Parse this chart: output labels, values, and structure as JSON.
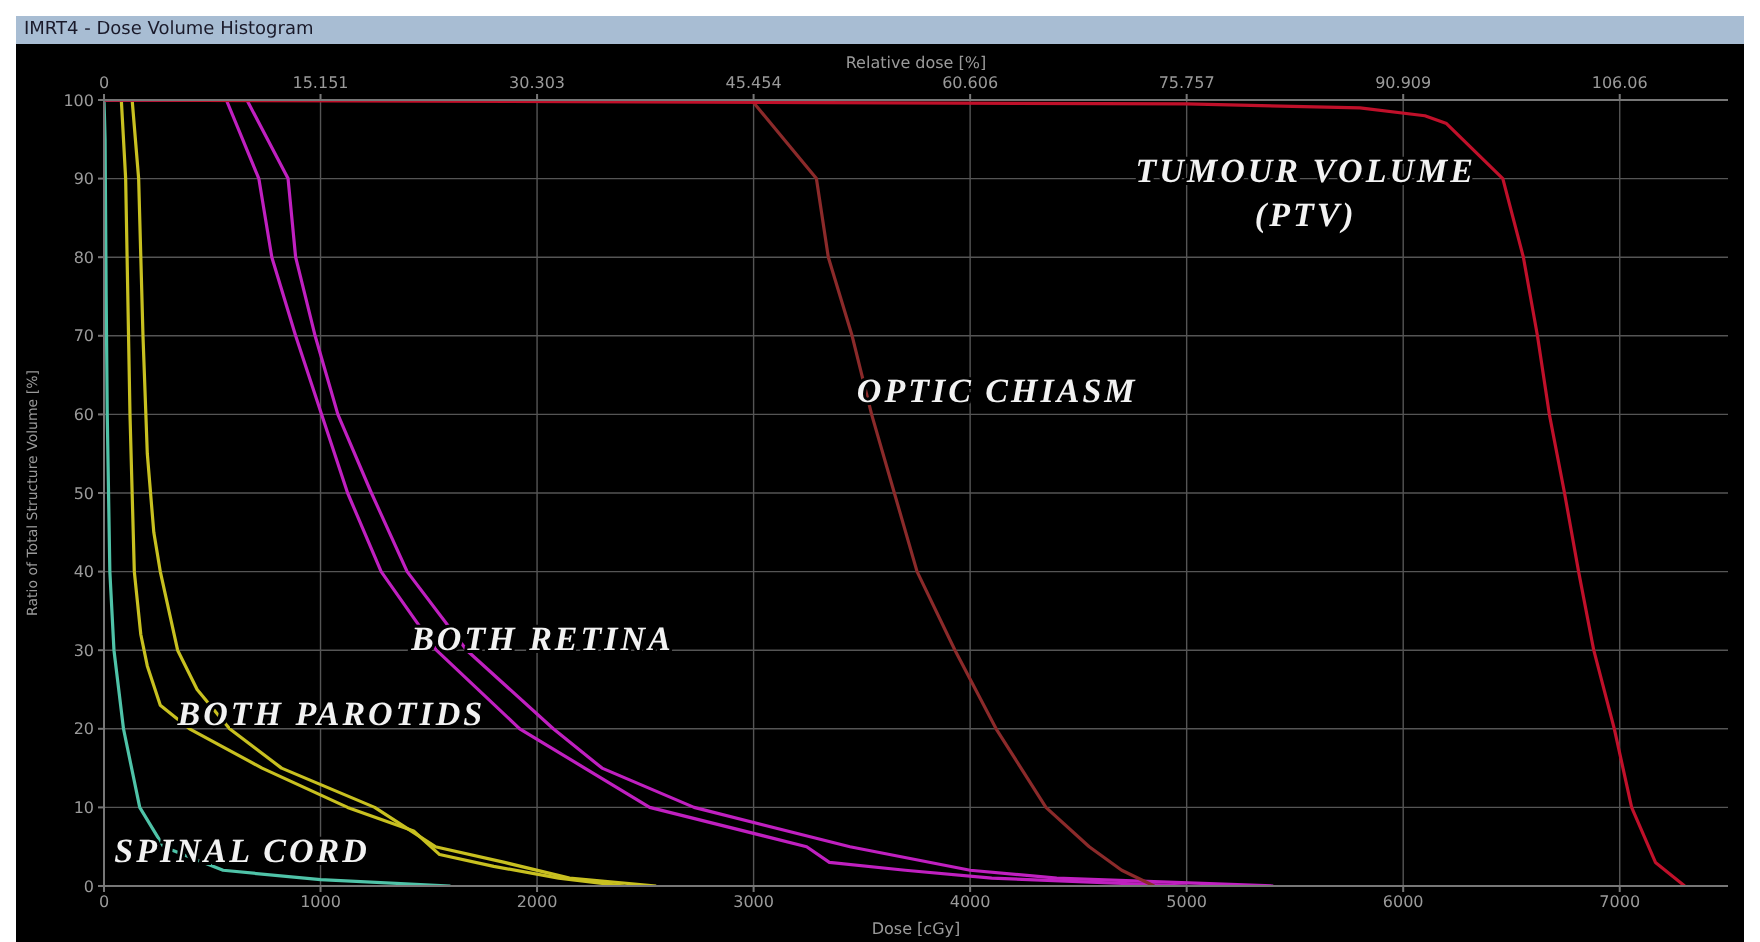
{
  "chart_data": {
    "type": "line",
    "title": "IMRT4 - Dose Volume Histogram",
    "xlabel": "Dose [cGy]",
    "x2label": "Relative dose [%]",
    "ylabel": "Ratio of Total Structure Volume [%]",
    "xlim": [
      0,
      7500
    ],
    "xticks": [
      0,
      1000,
      2000,
      3000,
      4000,
      5000,
      6000,
      7000
    ],
    "x2lim": [
      0,
      113.636
    ],
    "x2ticks": [
      0,
      15.151,
      30.303,
      45.454,
      60.606,
      75.757,
      90.909,
      106.06
    ],
    "ylim": [
      0,
      100
    ],
    "yticks": [
      0,
      10,
      20,
      30,
      40,
      50,
      60,
      70,
      80,
      90,
      100
    ],
    "grid": true,
    "marker": "none",
    "line_style": "solid",
    "series": [
      {
        "color": "#4fc3a8",
        "x": [
          0,
          5,
          10,
          15,
          27,
          46,
          90,
          165,
          275,
          550,
          1000,
          1600
        ],
        "values": [
          100,
          95,
          75,
          60,
          40,
          30,
          20,
          10,
          5,
          2,
          0.8,
          0
        ]
      },
      {
        "color": "#c8c020",
        "x": [
          0,
          80,
          100,
          120,
          140,
          170,
          200,
          260,
          395,
          730,
          1125,
          1430,
          1550,
          1800,
          2100,
          2400
        ],
        "values": [
          100,
          100,
          90,
          60,
          40,
          32,
          28,
          23,
          20,
          15,
          10,
          7,
          4,
          2.5,
          1,
          0
        ]
      },
      {
        "color": "#c8c020",
        "x": [
          0,
          130,
          160,
          180,
          200,
          230,
          260,
          340,
          430,
          580,
          820,
          1250,
          1530,
          1850,
          2150,
          2550
        ],
        "values": [
          100,
          100,
          90,
          70,
          55,
          45,
          40,
          30,
          25,
          20,
          15,
          10,
          5,
          3,
          1,
          0
        ]
      },
      {
        "color": "#c020c0",
        "x": [
          0,
          565,
          715,
          775,
          885,
          1005,
          1125,
          1280,
          1535,
          1920,
          2220,
          2520,
          3245,
          3350,
          3700,
          4100,
          5000
        ],
        "values": [
          100,
          100,
          90,
          80,
          70,
          60,
          50,
          40,
          30,
          20,
          15,
          10,
          5,
          3,
          2,
          1,
          0
        ]
      },
      {
        "color": "#c020c0",
        "x": [
          0,
          660,
          850,
          885,
          975,
          1080,
          1235,
          1400,
          1675,
          2075,
          2300,
          2725,
          3445,
          4000,
          4400,
          5400
        ],
        "values": [
          100,
          100,
          90,
          80,
          70,
          60,
          50,
          40,
          30,
          20,
          15,
          10,
          5,
          2,
          1,
          0
        ]
      },
      {
        "color": "#8b2a2a",
        "x": [
          0,
          2990,
          3290,
          3345,
          3455,
          3545,
          3650,
          3755,
          3930,
          4120,
          4350,
          4550,
          4700,
          4850
        ],
        "values": [
          100,
          100,
          90,
          80,
          70,
          60,
          50,
          40,
          30,
          20,
          10,
          5,
          2,
          0
        ]
      },
      {
        "color": "#c0102a",
        "x": [
          0,
          5000,
          5800,
          6100,
          6200,
          6460,
          6555,
          6620,
          6675,
          6745,
          6810,
          6880,
          6975,
          7055,
          7165,
          7300
        ],
        "values": [
          100,
          99.5,
          99,
          98,
          97,
          90,
          80,
          70,
          60,
          50,
          40,
          30,
          20,
          10,
          3,
          0
        ]
      }
    ],
    "annotations": [
      "TUMOUR VOLUME\n(PTV)",
      "OPTIC CHIASM",
      "BOTH RETINA",
      "BOTH PAROTIDS",
      "SPINAL CORD"
    ]
  }
}
